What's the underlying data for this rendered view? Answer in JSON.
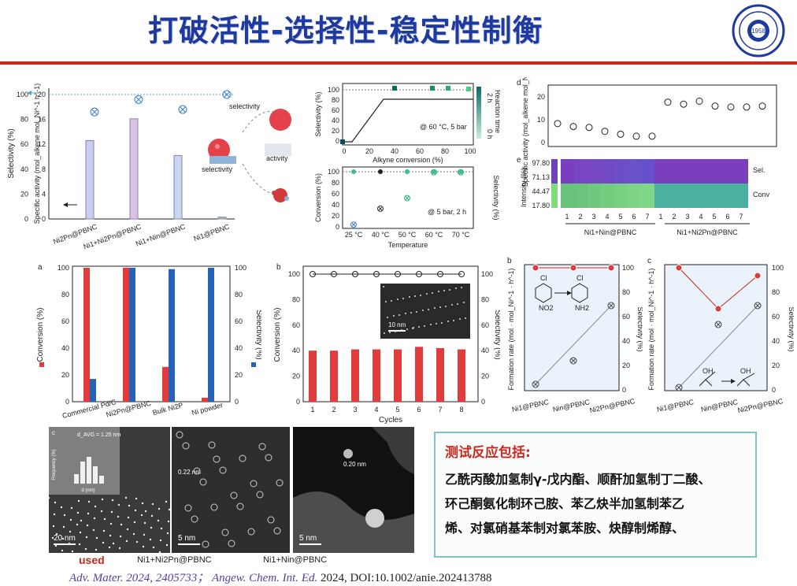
{
  "title": "打破活性-选择性-稳定性制衡",
  "logo": {
    "year": "1958"
  },
  "panel_tl": {
    "y_left_label": "Selectivity (%)",
    "y_right_label": "Specific activity (mol_alkene mol_Ni^-1 h^-1)",
    "y_left_ticks": [
      "100",
      "80",
      "60",
      "40",
      "20",
      "0"
    ],
    "y_right_ticks": [
      "20",
      "16",
      "12",
      "8",
      "4",
      "0"
    ],
    "categories": [
      "Ni2Pn@PBNC",
      "Ni1+Ni2Pn@PBNC",
      "Ni1+Nin@PBNC",
      "Ni1@PBNC"
    ],
    "labels": {
      "selectivity": "selectivity",
      "activity": "activity",
      "selectivity2": "selectivity"
    }
  },
  "panel_tc_top": {
    "ylabel": "Selectivity (%)",
    "xlabel": "Alkyne conversion (%)",
    "annotation": "@ 60 °C, 5 bar",
    "legend_top": "2 h",
    "legend_bottom": "0 h",
    "legend_title": "Reaction time",
    "yticks": [
      "100",
      "80",
      "60",
      "40",
      "20",
      "0"
    ],
    "xticks": [
      "0",
      "20",
      "40",
      "60",
      "80",
      "100"
    ]
  },
  "panel_tc_bottom": {
    "ylabel": "Conversion (%)",
    "ylabel_r": "Selectivity (%)",
    "xlabel": "Temperature",
    "annotation": "@ 5 bar, 2 h",
    "xticks": [
      "25 °C",
      "40 °C",
      "50 °C",
      "60 °C",
      "70 °C"
    ],
    "yticks": [
      "100",
      "80",
      "60",
      "40",
      "20",
      "0"
    ]
  },
  "panel_tr_d": {
    "tag": "d",
    "ylabel": "Specific activity (mol_alkene mol_Ni^-1 h^-1)",
    "yticks": [
      "20",
      "10",
      "0"
    ]
  },
  "panel_tr_e": {
    "tag": "e",
    "ylabel": "Intensity (%)",
    "ticks": [
      "97.80",
      "71.13",
      "44.47",
      "17.80"
    ],
    "rows": [
      "Sel.",
      "Conv"
    ],
    "x": [
      "1",
      "2",
      "3",
      "4",
      "5",
      "6",
      "7",
      "1",
      "2",
      "3",
      "4",
      "5",
      "6",
      "7"
    ],
    "groups": [
      "Ni1+Nin@PBNC",
      "Ni1+Ni2Pn@PBNC"
    ]
  },
  "panel_a": {
    "tag": "a",
    "ylabel_l": "Conversion (%)",
    "ylabel_r": "Selectivity (%)",
    "yticks": [
      "100",
      "80",
      "60",
      "40",
      "20",
      "0"
    ],
    "categories": [
      "Commercial Pd/C",
      "Ni2Pn@PBNC",
      "Bulk Ni2P",
      "Ni powder"
    ]
  },
  "panel_b": {
    "tag": "b",
    "ylabel_l": "Conversion (%)",
    "ylabel_r": "Selectivity (%)",
    "xlabel": "Cycles",
    "yticks": [
      "100",
      "80",
      "60",
      "40",
      "20",
      "0"
    ],
    "scale": "10 nm"
  },
  "panel_c1": {
    "tag": "b",
    "ylabel_l": "Formation rate (mol · mol_Ni^-1 · h^-1)",
    "ylabel_r": "Selectivity (%)",
    "categories": [
      "Ni1@PBNC",
      "Nin@PBNC",
      "Ni2Pn@PBNC"
    ],
    "yticks_r": [
      "100",
      "80",
      "60",
      "40",
      "20",
      "0"
    ],
    "mol1": "Cl",
    "mol2": "Cl",
    "sub1": "NO2",
    "sub2": "NH2"
  },
  "panel_c2": {
    "tag": "c",
    "ylabel_l": "Formation rate (mol · mol_Ni^-1 · h^-1)",
    "ylabel_r": "Selectivity (%)",
    "categories": [
      "Ni1@PBNC",
      "Nin@PBNC",
      "Ni2Pn@PBNC"
    ],
    "yticks_r": [
      "100",
      "80",
      "60",
      "40",
      "20",
      "0"
    ],
    "oh1": "OH",
    "oh2": "OH"
  },
  "tem": {
    "tag": "c",
    "hist_label": "d_AVG = 1.25 nm",
    "hist_ylabel": "Frequency (%)",
    "hist_xlabel": "d (nm)",
    "hist_yticks": [
      "40",
      "32",
      "24",
      "16",
      "8",
      "0"
    ],
    "hist_xticks": [
      "0",
      "1",
      "2",
      "3"
    ],
    "scale1": "20 nm",
    "scale2": "5 nm",
    "scale3": "5 nm",
    "d1": "0.22 nm",
    "d2": "0.20 nm"
  },
  "textbox": {
    "heading": "测试反应包括:",
    "lines": [
      "乙酰丙酸加氢制γ-戊内酯、顺酐加氢制丁二酸、",
      "环己酮氨化制环己胺、苯乙炔半加氢制苯乙",
      "烯、对氯硝基苯制对氯苯胺、炔醇制烯醇、"
    ]
  },
  "used": "used",
  "captions": [
    "Ni1+Ni2Pn@PBNC",
    "Ni1+Nin@PBNC"
  ],
  "reference": {
    "j1": "Adv. Mater.",
    "y1": "2024, 2405733；",
    "j2": "Angew. Chem. Int. Ed.",
    "rest": "2024, DOI:10.1002/anie.202413788"
  },
  "chart_data": [
    {
      "type": "bar",
      "title": "",
      "categories": [
        "Ni2Pn@PBNC",
        "Ni1+Ni2Pn@PBNC",
        "Ni1+Nin@PBNC",
        "Ni1@PBNC"
      ],
      "series": [
        {
          "name": "Specific activity",
          "values": [
            12.6,
            16.1,
            10.2,
            0.3
          ]
        },
        {
          "name": "Selectivity",
          "values": [
            86,
            96,
            88,
            100
          ]
        }
      ],
      "ylim": [
        0,
        20
      ]
    },
    {
      "type": "bar",
      "title": "",
      "categories": [
        "Commercial Pd/C",
        "Ni2Pn@PBNC",
        "Bulk Ni2P",
        "Ni powder"
      ],
      "series": [
        {
          "name": "Conversion (%)",
          "values": [
            100,
            100,
            26,
            3
          ]
        },
        {
          "name": "Selectivity (%)",
          "values": [
            17,
            100,
            99,
            100
          ]
        }
      ],
      "ylim": [
        0,
        100
      ]
    },
    {
      "type": "bar",
      "title": "",
      "categories": [
        "1",
        "2",
        "3",
        "4",
        "5",
        "6",
        "7",
        "8"
      ],
      "series": [
        {
          "name": "Conversion (%)",
          "values": [
            40,
            40,
            41,
            41,
            41,
            43,
            42,
            41
          ]
        },
        {
          "name": "Selectivity (%)",
          "values": [
            100,
            100,
            100,
            100,
            100,
            100,
            100,
            100
          ]
        }
      ],
      "xlabel": "Cycles",
      "ylim": [
        0,
        100
      ]
    },
    {
      "type": "scatter",
      "title": "",
      "x": [
        "1",
        "2",
        "3",
        "4",
        "5",
        "6",
        "7",
        "1",
        "2",
        "3",
        "4",
        "5",
        "6",
        "7"
      ],
      "series": [
        {
          "name": "Specific activity",
          "values": [
            11,
            9.5,
            9,
            7,
            5.5,
            4.5,
            4.5,
            22,
            21,
            22.5,
            20,
            19.5,
            19.5,
            20
          ]
        }
      ],
      "ylim": [
        0,
        30
      ]
    }
  ]
}
